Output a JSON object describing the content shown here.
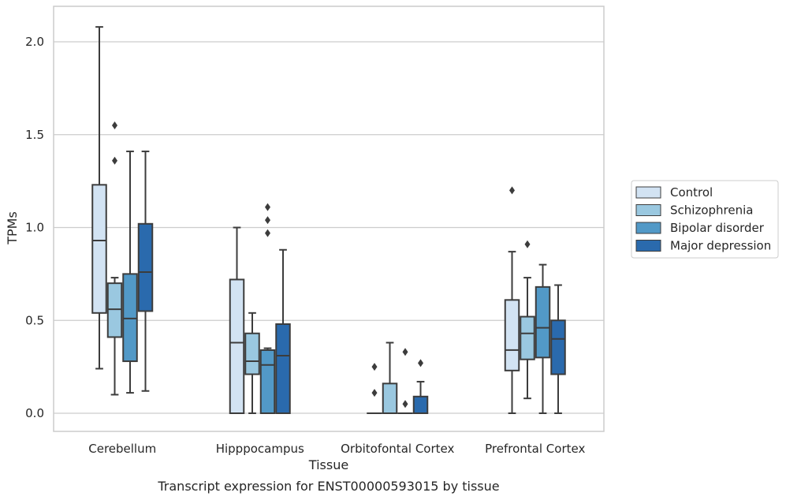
{
  "chart_data": {
    "type": "boxplot",
    "caption": "Transcript expression for ENST00000593015 by tissue",
    "xlabel": "Tissue",
    "ylabel": "TPMs",
    "ylim": [
      -0.1,
      2.2
    ],
    "yticks": [
      0.0,
      0.5,
      1.0,
      1.5,
      2.0
    ],
    "ytick_labels": [
      "0.0",
      "0.5",
      "1.0",
      "1.5",
      "2.0"
    ],
    "grid": "horizontal",
    "legend_position": "right",
    "categories": [
      "Cerebellum",
      "Hipppocampus",
      "Orbitofontal Cortex",
      "Prefrontal Cortex"
    ],
    "series": [
      {
        "name": "Control",
        "color": "#d2e3f3",
        "boxes": [
          {
            "whislo": 0.24,
            "q1": 0.54,
            "median": 0.93,
            "q3": 1.23,
            "whishi": 2.08,
            "fliers": []
          },
          {
            "whislo": 0.0,
            "q1": 0.0,
            "median": 0.38,
            "q3": 0.72,
            "whishi": 1.0,
            "fliers": []
          },
          {
            "whislo": 0.0,
            "q1": 0.0,
            "median": 0.0,
            "q3": 0.0,
            "whishi": 0.0,
            "fliers": [
              0.25,
              0.11
            ]
          },
          {
            "whislo": 0.0,
            "q1": 0.23,
            "median": 0.34,
            "q3": 0.61,
            "whishi": 0.87,
            "fliers": [
              1.2
            ]
          }
        ]
      },
      {
        "name": "Schizophrenia",
        "color": "#9ac8e0",
        "boxes": [
          {
            "whislo": 0.1,
            "q1": 0.41,
            "median": 0.56,
            "q3": 0.7,
            "whishi": 0.73,
            "fliers": [
              1.55,
              1.36
            ]
          },
          {
            "whislo": 0.0,
            "q1": 0.21,
            "median": 0.28,
            "q3": 0.43,
            "whishi": 0.54,
            "fliers": []
          },
          {
            "whislo": 0.0,
            "q1": 0.0,
            "median": 0.0,
            "q3": 0.16,
            "whishi": 0.38,
            "fliers": []
          },
          {
            "whislo": 0.08,
            "q1": 0.29,
            "median": 0.43,
            "q3": 0.52,
            "whishi": 0.73,
            "fliers": [
              0.91
            ]
          }
        ]
      },
      {
        "name": "Bipolar disorder",
        "color": "#5299c7",
        "boxes": [
          {
            "whislo": 0.11,
            "q1": 0.28,
            "median": 0.51,
            "q3": 0.75,
            "whishi": 1.41,
            "fliers": []
          },
          {
            "whislo": 0.0,
            "q1": 0.0,
            "median": 0.26,
            "q3": 0.34,
            "whishi": 0.35,
            "fliers": [
              1.11,
              1.04,
              0.97
            ]
          },
          {
            "whislo": 0.0,
            "q1": 0.0,
            "median": 0.0,
            "q3": 0.0,
            "whishi": 0.0,
            "fliers": [
              0.33,
              0.05
            ]
          },
          {
            "whislo": 0.0,
            "q1": 0.3,
            "median": 0.46,
            "q3": 0.68,
            "whishi": 0.8,
            "fliers": []
          }
        ]
      },
      {
        "name": "Major depression",
        "color": "#2a6aad",
        "boxes": [
          {
            "whislo": 0.12,
            "q1": 0.55,
            "median": 0.76,
            "q3": 1.02,
            "whishi": 1.41,
            "fliers": []
          },
          {
            "whislo": 0.0,
            "q1": 0.0,
            "median": 0.31,
            "q3": 0.48,
            "whishi": 0.88,
            "fliers": []
          },
          {
            "whislo": 0.0,
            "q1": 0.0,
            "median": 0.0,
            "q3": 0.09,
            "whishi": 0.17,
            "fliers": [
              0.27
            ]
          },
          {
            "whislo": 0.0,
            "q1": 0.21,
            "median": 0.4,
            "q3": 0.5,
            "whishi": 0.69,
            "fliers": []
          }
        ]
      }
    ]
  }
}
